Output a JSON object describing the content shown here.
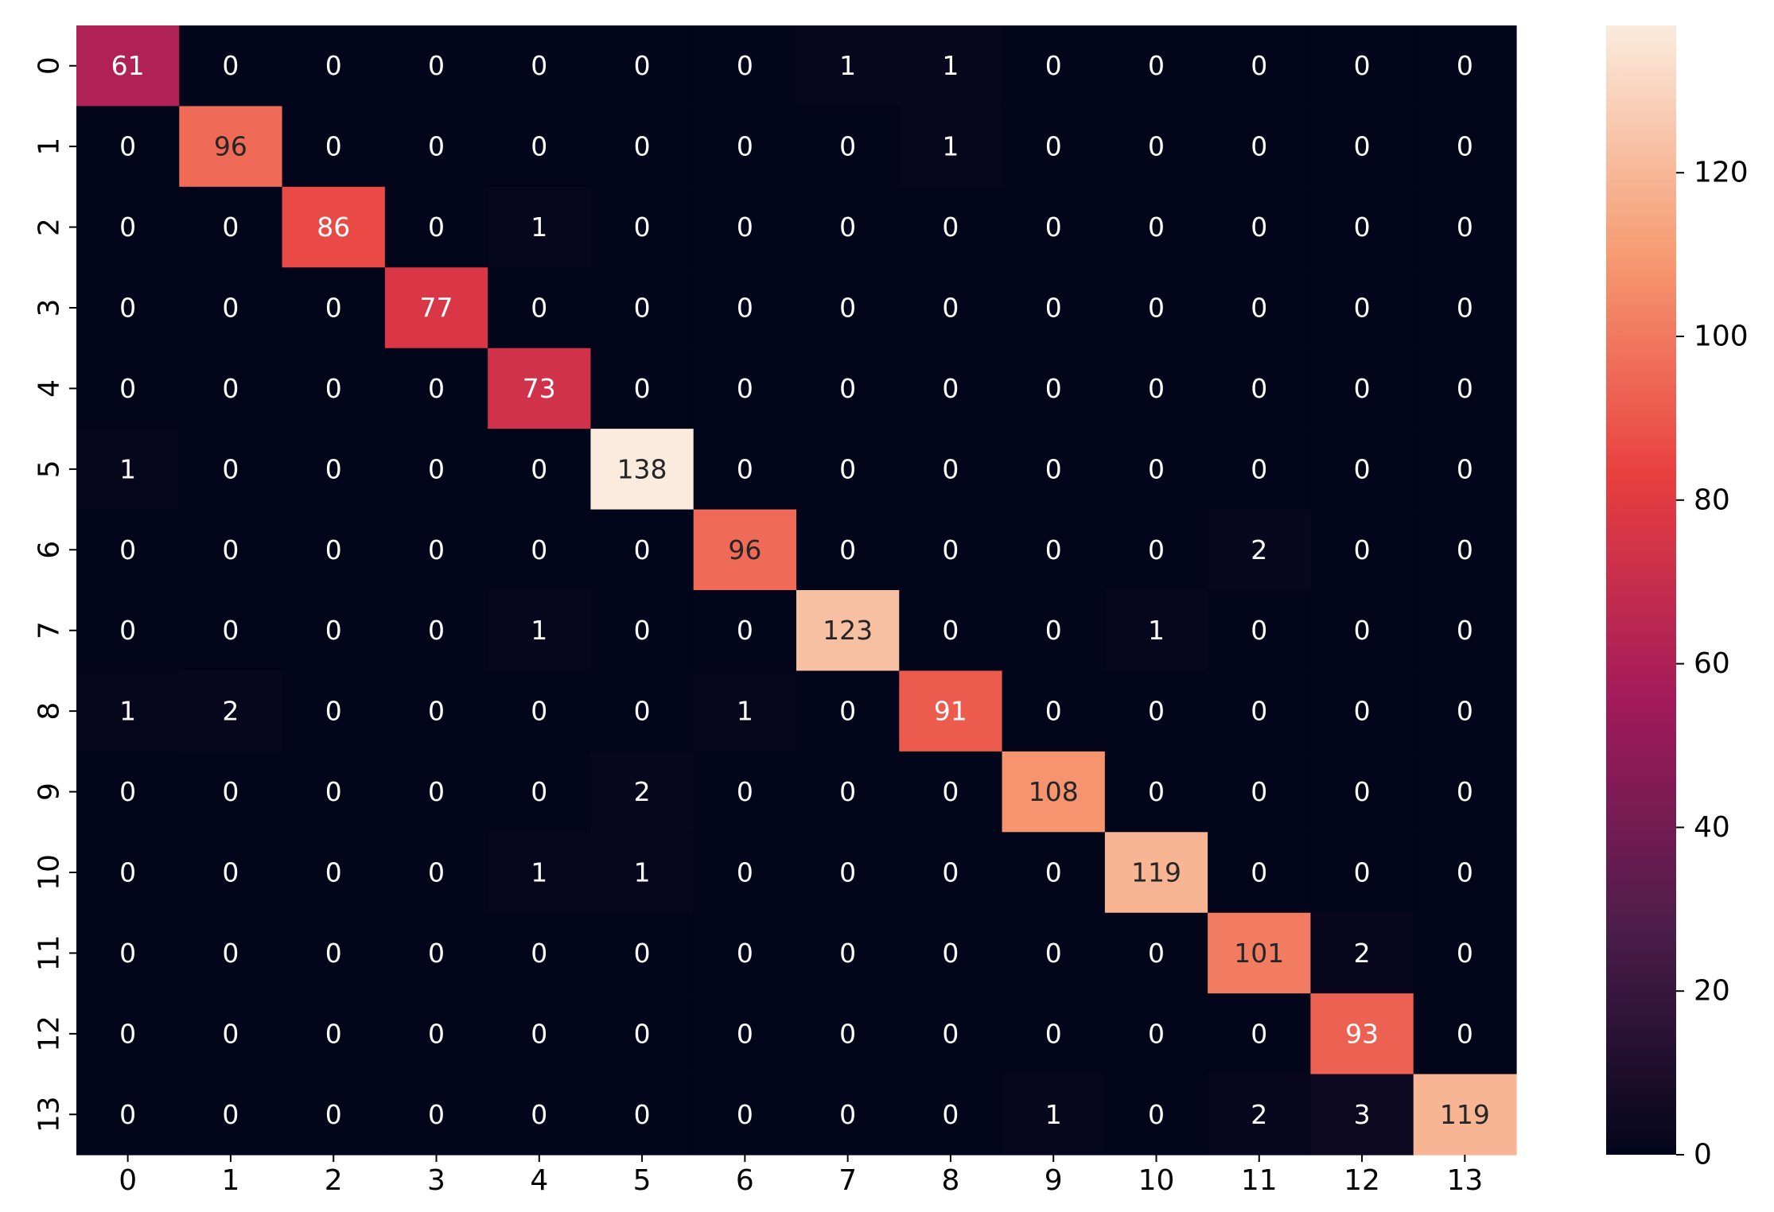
{
  "chart_data": {
    "type": "heatmap",
    "title": "",
    "xlabel": "",
    "ylabel": "",
    "x_categories": [
      "0",
      "1",
      "2",
      "3",
      "4",
      "5",
      "6",
      "7",
      "8",
      "9",
      "10",
      "11",
      "12",
      "13"
    ],
    "y_categories": [
      "0",
      "1",
      "2",
      "3",
      "4",
      "5",
      "6",
      "7",
      "8",
      "9",
      "10",
      "11",
      "12",
      "13"
    ],
    "matrix": [
      [
        61,
        0,
        0,
        0,
        0,
        0,
        0,
        1,
        1,
        0,
        0,
        0,
        0,
        0
      ],
      [
        0,
        96,
        0,
        0,
        0,
        0,
        0,
        0,
        1,
        0,
        0,
        0,
        0,
        0
      ],
      [
        0,
        0,
        86,
        0,
        1,
        0,
        0,
        0,
        0,
        0,
        0,
        0,
        0,
        0
      ],
      [
        0,
        0,
        0,
        77,
        0,
        0,
        0,
        0,
        0,
        0,
        0,
        0,
        0,
        0
      ],
      [
        0,
        0,
        0,
        0,
        73,
        0,
        0,
        0,
        0,
        0,
        0,
        0,
        0,
        0
      ],
      [
        1,
        0,
        0,
        0,
        0,
        138,
        0,
        0,
        0,
        0,
        0,
        0,
        0,
        0
      ],
      [
        0,
        0,
        0,
        0,
        0,
        0,
        96,
        0,
        0,
        0,
        0,
        2,
        0,
        0
      ],
      [
        0,
        0,
        0,
        0,
        1,
        0,
        0,
        123,
        0,
        0,
        1,
        0,
        0,
        0
      ],
      [
        1,
        2,
        0,
        0,
        0,
        0,
        1,
        0,
        91,
        0,
        0,
        0,
        0,
        0
      ],
      [
        0,
        0,
        0,
        0,
        0,
        2,
        0,
        0,
        0,
        108,
        0,
        0,
        0,
        0
      ],
      [
        0,
        0,
        0,
        0,
        1,
        1,
        0,
        0,
        0,
        0,
        119,
        0,
        0,
        0
      ],
      [
        0,
        0,
        0,
        0,
        0,
        0,
        0,
        0,
        0,
        0,
        0,
        101,
        2,
        0
      ],
      [
        0,
        0,
        0,
        0,
        0,
        0,
        0,
        0,
        0,
        0,
        0,
        0,
        93,
        0
      ],
      [
        0,
        0,
        0,
        0,
        0,
        0,
        0,
        0,
        0,
        1,
        0,
        2,
        3,
        119
      ]
    ],
    "colorbar": {
      "min": 0,
      "max": 138,
      "ticks": [
        0,
        20,
        40,
        60,
        80,
        100,
        120
      ],
      "colormap": "rocket",
      "stops": [
        "#03051a",
        "#4c1d4b",
        "#a11a5b",
        "#e83f3f",
        "#f69c73",
        "#faebdd"
      ]
    },
    "grid": false,
    "legend": "colorbar-right"
  }
}
